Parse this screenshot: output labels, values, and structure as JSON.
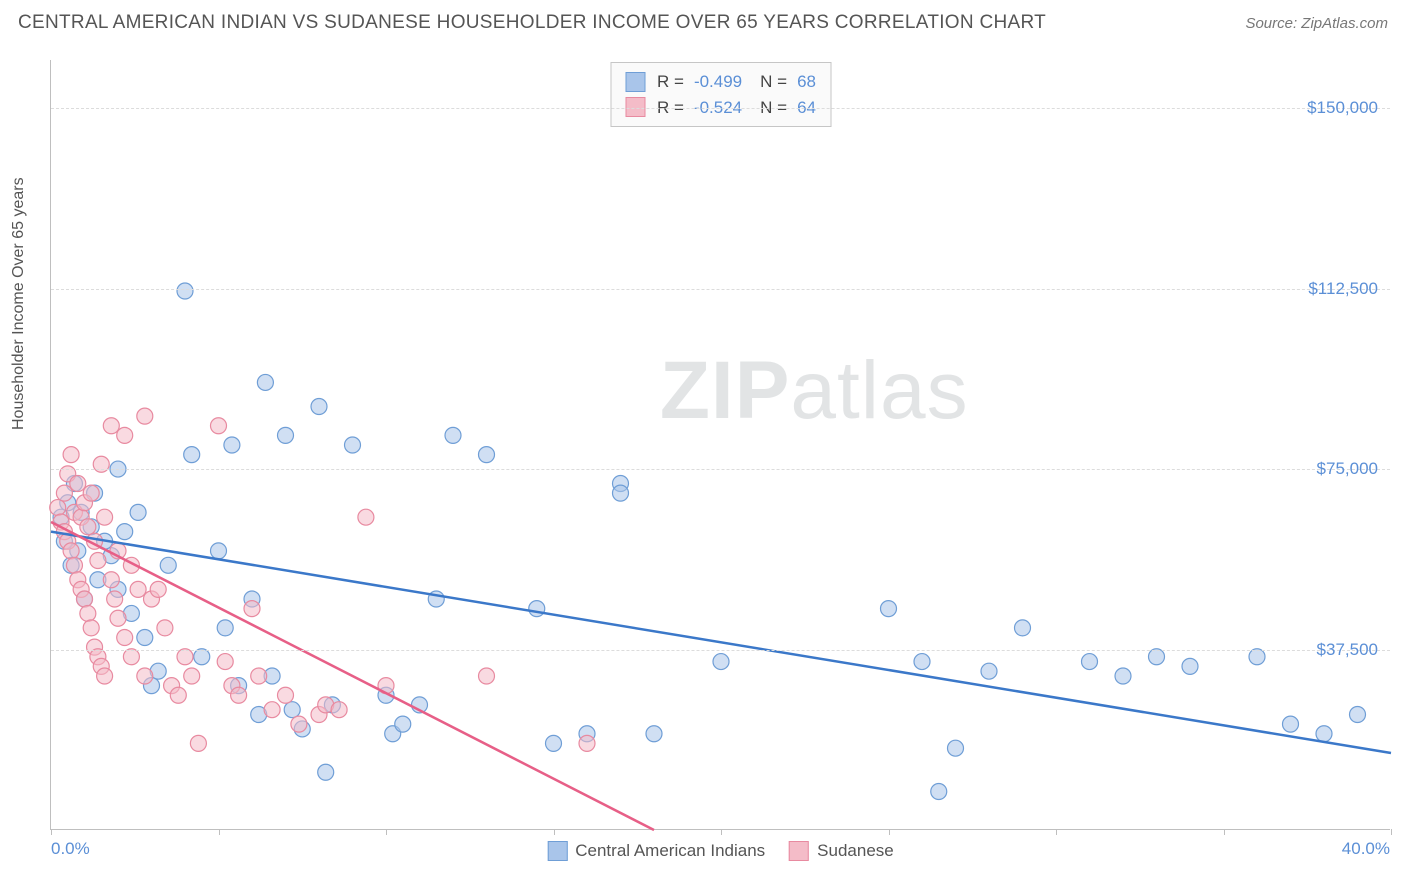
{
  "header": {
    "title": "CENTRAL AMERICAN INDIAN VS SUDANESE HOUSEHOLDER INCOME OVER 65 YEARS CORRELATION CHART",
    "source": "Source: ZipAtlas.com"
  },
  "chart": {
    "type": "scatter",
    "y_axis_label": "Householder Income Over 65 years",
    "watermark_text_bold": "ZIP",
    "watermark_text_light": "atlas",
    "xlim": [
      0,
      40
    ],
    "ylim": [
      0,
      160000
    ],
    "x_tick_positions": [
      0,
      5,
      10,
      15,
      20,
      25,
      30,
      35,
      40
    ],
    "x_labels": {
      "start": "0.0%",
      "end": "40.0%"
    },
    "y_gridlines": [
      37500,
      75000,
      112500,
      150000
    ],
    "y_tick_labels": [
      "$37,500",
      "$75,000",
      "$112,500",
      "$150,000"
    ],
    "background_color": "#ffffff",
    "grid_color": "#dcdcdc",
    "axis_color": "#bfbfbf",
    "label_color": "#5b8fd6",
    "series": [
      {
        "name": "Central American Indians",
        "color_fill": "#a9c5ea",
        "color_stroke": "#6f9ed6",
        "line_color": "#3b78c9",
        "marker_radius": 8,
        "marker_opacity": 0.55,
        "R": "-0.499",
        "N": "68",
        "trend": {
          "x1": 0,
          "y1": 62000,
          "x2": 40,
          "y2": 16000
        },
        "points": [
          [
            0.3,
            65000
          ],
          [
            0.4,
            60000
          ],
          [
            0.5,
            68000
          ],
          [
            0.6,
            55000
          ],
          [
            0.7,
            72000
          ],
          [
            0.8,
            58000
          ],
          [
            0.9,
            66000
          ],
          [
            1.0,
            48000
          ],
          [
            1.2,
            63000
          ],
          [
            1.3,
            70000
          ],
          [
            1.4,
            52000
          ],
          [
            1.6,
            60000
          ],
          [
            1.8,
            57000
          ],
          [
            2.0,
            75000
          ],
          [
            2.0,
            50000
          ],
          [
            2.2,
            62000
          ],
          [
            2.4,
            45000
          ],
          [
            2.6,
            66000
          ],
          [
            2.8,
            40000
          ],
          [
            3.0,
            30000
          ],
          [
            3.2,
            33000
          ],
          [
            3.5,
            55000
          ],
          [
            4.0,
            112000
          ],
          [
            4.2,
            78000
          ],
          [
            4.5,
            36000
          ],
          [
            5.0,
            58000
          ],
          [
            5.2,
            42000
          ],
          [
            5.4,
            80000
          ],
          [
            5.6,
            30000
          ],
          [
            6.0,
            48000
          ],
          [
            6.2,
            24000
          ],
          [
            6.4,
            93000
          ],
          [
            6.6,
            32000
          ],
          [
            7.0,
            82000
          ],
          [
            7.2,
            25000
          ],
          [
            7.5,
            21000
          ],
          [
            8.0,
            88000
          ],
          [
            8.2,
            12000
          ],
          [
            8.4,
            26000
          ],
          [
            9.0,
            80000
          ],
          [
            10.0,
            28000
          ],
          [
            10.2,
            20000
          ],
          [
            10.5,
            22000
          ],
          [
            11.0,
            26000
          ],
          [
            11.5,
            48000
          ],
          [
            12.0,
            82000
          ],
          [
            13.0,
            78000
          ],
          [
            14.5,
            46000
          ],
          [
            15.0,
            18000
          ],
          [
            16.0,
            20000
          ],
          [
            17.0,
            72000
          ],
          [
            17.0,
            70000
          ],
          [
            18.0,
            20000
          ],
          [
            20.0,
            35000
          ],
          [
            25.0,
            46000
          ],
          [
            26.0,
            35000
          ],
          [
            26.5,
            8000
          ],
          [
            27.0,
            17000
          ],
          [
            28.0,
            33000
          ],
          [
            29.0,
            42000
          ],
          [
            31.0,
            35000
          ],
          [
            32.0,
            32000
          ],
          [
            33.0,
            36000
          ],
          [
            34.0,
            34000
          ],
          [
            36.0,
            36000
          ],
          [
            37.0,
            22000
          ],
          [
            38.0,
            20000
          ],
          [
            39.0,
            24000
          ]
        ]
      },
      {
        "name": "Sudanese",
        "color_fill": "#f4bcc8",
        "color_stroke": "#e88aa0",
        "line_color": "#e75f87",
        "marker_radius": 8,
        "marker_opacity": 0.55,
        "R": "-0.524",
        "N": "64",
        "trend": {
          "x1": 0,
          "y1": 64000,
          "x2": 18,
          "y2": 0
        },
        "points": [
          [
            0.2,
            67000
          ],
          [
            0.3,
            64000
          ],
          [
            0.4,
            70000
          ],
          [
            0.4,
            62000
          ],
          [
            0.5,
            74000
          ],
          [
            0.5,
            60000
          ],
          [
            0.6,
            78000
          ],
          [
            0.6,
            58000
          ],
          [
            0.7,
            66000
          ],
          [
            0.7,
            55000
          ],
          [
            0.8,
            72000
          ],
          [
            0.8,
            52000
          ],
          [
            0.9,
            65000
          ],
          [
            0.9,
            50000
          ],
          [
            1.0,
            68000
          ],
          [
            1.0,
            48000
          ],
          [
            1.1,
            63000
          ],
          [
            1.1,
            45000
          ],
          [
            1.2,
            70000
          ],
          [
            1.2,
            42000
          ],
          [
            1.3,
            60000
          ],
          [
            1.3,
            38000
          ],
          [
            1.4,
            56000
          ],
          [
            1.4,
            36000
          ],
          [
            1.5,
            76000
          ],
          [
            1.5,
            34000
          ],
          [
            1.6,
            65000
          ],
          [
            1.6,
            32000
          ],
          [
            1.8,
            84000
          ],
          [
            1.8,
            52000
          ],
          [
            1.9,
            48000
          ],
          [
            2.0,
            58000
          ],
          [
            2.0,
            44000
          ],
          [
            2.2,
            82000
          ],
          [
            2.2,
            40000
          ],
          [
            2.4,
            55000
          ],
          [
            2.4,
            36000
          ],
          [
            2.6,
            50000
          ],
          [
            2.8,
            86000
          ],
          [
            2.8,
            32000
          ],
          [
            3.0,
            48000
          ],
          [
            3.2,
            50000
          ],
          [
            3.4,
            42000
          ],
          [
            3.6,
            30000
          ],
          [
            3.8,
            28000
          ],
          [
            4.0,
            36000
          ],
          [
            4.2,
            32000
          ],
          [
            4.4,
            18000
          ],
          [
            5.0,
            84000
          ],
          [
            5.2,
            35000
          ],
          [
            5.4,
            30000
          ],
          [
            5.6,
            28000
          ],
          [
            6.0,
            46000
          ],
          [
            6.2,
            32000
          ],
          [
            6.6,
            25000
          ],
          [
            7.0,
            28000
          ],
          [
            7.4,
            22000
          ],
          [
            8.0,
            24000
          ],
          [
            8.2,
            26000
          ],
          [
            8.6,
            25000
          ],
          [
            9.4,
            65000
          ],
          [
            10.0,
            30000
          ],
          [
            13.0,
            32000
          ],
          [
            16.0,
            18000
          ]
        ]
      }
    ],
    "legend_bottom": [
      {
        "label": "Central American Indians",
        "fill": "#a9c5ea",
        "stroke": "#6f9ed6"
      },
      {
        "label": "Sudanese",
        "fill": "#f4bcc8",
        "stroke": "#e88aa0"
      }
    ]
  }
}
